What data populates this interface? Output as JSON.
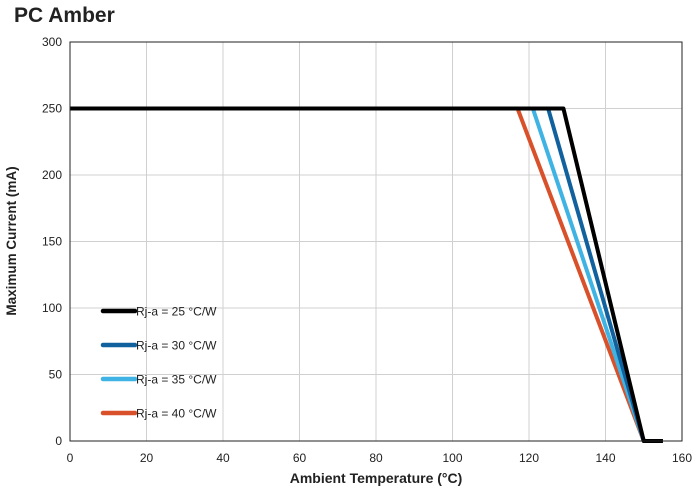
{
  "chart_data": {
    "type": "line",
    "title": "PC Amber",
    "xlabel": "Ambient Temperature (°C)",
    "ylabel": "Maximum Current (mA)",
    "xlim": [
      0,
      160
    ],
    "ylim": [
      0,
      300
    ],
    "xticks": [
      0,
      20,
      40,
      60,
      80,
      100,
      120,
      140,
      160
    ],
    "yticks": [
      0,
      50,
      100,
      150,
      200,
      250,
      300
    ],
    "grid": true,
    "legend_position": "bottom-left",
    "series": [
      {
        "name": "Rj-a = 25 °C/W",
        "color": "#000000",
        "x": [
          0,
          129,
          150,
          155
        ],
        "y": [
          250,
          250,
          0,
          0
        ]
      },
      {
        "name": "Rj-a = 30 °C/W",
        "color": "#11619e",
        "x": [
          0,
          125,
          150,
          155
        ],
        "y": [
          250,
          250,
          0,
          0
        ]
      },
      {
        "name": "Rj-a = 35 °C/W",
        "color": "#3fb4e4",
        "x": [
          0,
          121,
          150,
          155
        ],
        "y": [
          250,
          250,
          0,
          0
        ]
      },
      {
        "name": "Rj-a = 40 °C/W",
        "color": "#d9512a",
        "x": [
          0,
          117,
          150,
          155
        ],
        "y": [
          250,
          250,
          0,
          0
        ]
      }
    ]
  }
}
